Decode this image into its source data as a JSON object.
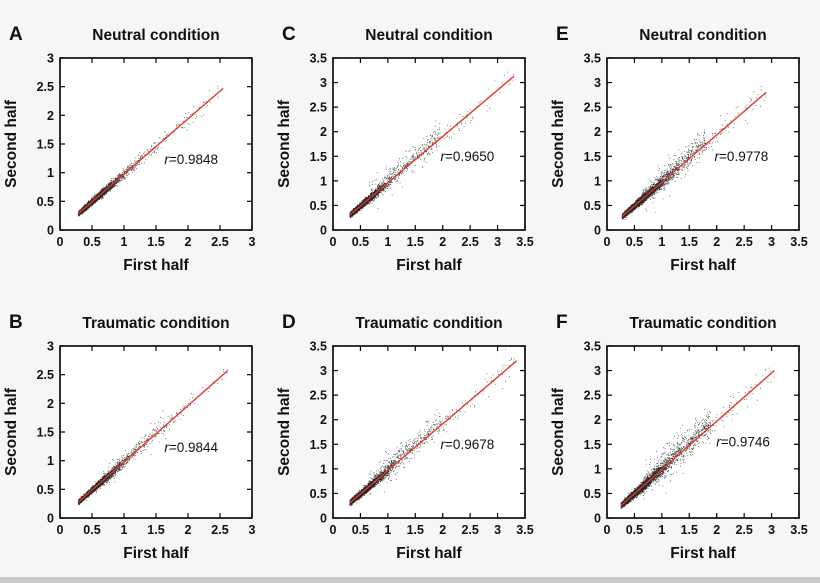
{
  "figure": {
    "background_color": "#f6f6f6",
    "plot_background_color": "#ffffff",
    "axis_color": "#000000",
    "text_color": "#111111",
    "point_color": "#000000",
    "regression_line_color": "#e0392e",
    "bottom_strip_color": "#c8c8c8"
  },
  "chart_data": [
    {
      "id": "A",
      "panel_label": "A",
      "type": "scatter",
      "title": "Neutral condition",
      "xlabel": "First half",
      "ylabel": "Second half",
      "xlim": [
        0,
        3
      ],
      "ylim": [
        0,
        3
      ],
      "xticks": [
        0,
        0.5,
        1,
        1.5,
        2,
        2.5,
        3
      ],
      "yticks": [
        0,
        0.5,
        1,
        1.5,
        2,
        2.5,
        3
      ],
      "grid": false,
      "r_value": 0.9848,
      "r_text": "r=0.9848",
      "r_pos": [
        2.05,
        1.15
      ],
      "regression_line": {
        "x1": 0.28,
        "y1": 0.28,
        "x2": 2.55,
        "y2": 2.47
      },
      "scatter_summary": {
        "description": "Dense black point cloud of paired values hugging the identity line; tight spread widening slightly at higher values",
        "seed": 101,
        "n": 3800,
        "x_min": 0.28,
        "x_max": 2.55,
        "core_sigma": 0.3,
        "noise_base": 0.008,
        "noise_slope": 0.035,
        "fan_n": 0,
        "fan_sigma": 0,
        "fan_up_frac": 0.8
      }
    },
    {
      "id": "C",
      "panel_label": "C",
      "type": "scatter",
      "title": "Neutral condition",
      "xlabel": "First half",
      "ylabel": "Second half",
      "xlim": [
        0,
        3.5
      ],
      "ylim": [
        0,
        3.5
      ],
      "xticks": [
        0,
        0.5,
        1,
        1.5,
        2,
        2.5,
        3,
        3.5
      ],
      "yticks": [
        0,
        0.5,
        1,
        1.5,
        2,
        2.5,
        3,
        3.5
      ],
      "grid": false,
      "r_value": 0.965,
      "r_text": "r=0.9650",
      "r_pos": [
        2.45,
        1.4
      ],
      "regression_line": {
        "x1": 0.3,
        "y1": 0.3,
        "x2": 3.3,
        "y2": 3.13
      },
      "scatter_summary": {
        "description": "Dense cloud up to ~1.5 with an upward fan of outliers between 1 and 2.5 and sparse points out to 3.3",
        "seed": 303,
        "n": 3600,
        "x_min": 0.3,
        "x_max": 3.3,
        "core_sigma": 0.28,
        "noise_base": 0.01,
        "noise_slope": 0.04,
        "fan_n": 260,
        "fan_sigma": 0.14,
        "fan_up_frac": 0.85
      }
    },
    {
      "id": "E",
      "panel_label": "E",
      "type": "scatter",
      "title": "Neutral condition",
      "xlabel": "First half",
      "ylabel": "Second half",
      "xlim": [
        0,
        3.5
      ],
      "ylim": [
        0,
        3.5
      ],
      "xticks": [
        0,
        0.5,
        1,
        1.5,
        2,
        2.5,
        3,
        3.5
      ],
      "yticks": [
        0,
        0.5,
        1,
        1.5,
        2,
        2.5,
        3,
        3.5
      ],
      "grid": false,
      "r_value": 0.9778,
      "r_text": "r=0.9778",
      "r_pos": [
        2.45,
        1.4
      ],
      "regression_line": {
        "x1": 0.27,
        "y1": 0.27,
        "x2": 2.9,
        "y2": 2.8
      },
      "scatter_summary": {
        "description": "Broad dense cloud along identity line extending to ~2.9 with mild upward fan near 1-2",
        "seed": 505,
        "n": 4200,
        "x_min": 0.27,
        "x_max": 2.9,
        "core_sigma": 0.36,
        "noise_base": 0.01,
        "noise_slope": 0.045,
        "fan_n": 380,
        "fan_sigma": 0.13,
        "fan_up_frac": 0.8
      }
    },
    {
      "id": "B",
      "panel_label": "B",
      "type": "scatter",
      "title": "Traumatic condition",
      "xlabel": "First half",
      "ylabel": "Second half",
      "xlim": [
        0,
        3
      ],
      "ylim": [
        0,
        3
      ],
      "xticks": [
        0,
        0.5,
        1,
        1.5,
        2,
        2.5,
        3
      ],
      "yticks": [
        0,
        0.5,
        1,
        1.5,
        2,
        2.5,
        3
      ],
      "grid": false,
      "r_value": 0.9844,
      "r_text": "r=0.9844",
      "r_pos": [
        2.05,
        1.15
      ],
      "regression_line": {
        "x1": 0.28,
        "y1": 0.27,
        "x2": 2.62,
        "y2": 2.57
      },
      "scatter_summary": {
        "description": "Tight dense cloud along identity line to ~1.5, thinning out to ~2.6, slight spread above line near 1.2-1.7",
        "seed": 202,
        "n": 3800,
        "x_min": 0.28,
        "x_max": 2.62,
        "core_sigma": 0.3,
        "noise_base": 0.008,
        "noise_slope": 0.033,
        "fan_n": 120,
        "fan_sigma": 0.09,
        "fan_up_frac": 0.8
      }
    },
    {
      "id": "D",
      "panel_label": "D",
      "type": "scatter",
      "title": "Traumatic condition",
      "xlabel": "First half",
      "ylabel": "Second half",
      "xlim": [
        0,
        3.5
      ],
      "ylim": [
        0,
        3.5
      ],
      "xticks": [
        0,
        0.5,
        1,
        1.5,
        2,
        2.5,
        3,
        3.5
      ],
      "yticks": [
        0,
        0.5,
        1,
        1.5,
        2,
        2.5,
        3,
        3.5
      ],
      "grid": false,
      "r_value": 0.9678,
      "r_text": "r=0.9678",
      "r_pos": [
        2.45,
        1.4
      ],
      "regression_line": {
        "x1": 0.3,
        "y1": 0.3,
        "x2": 3.35,
        "y2": 3.2
      },
      "scatter_summary": {
        "description": "Teardrop-shaped dense cloud to ~1.6 with upward fan of outliers between 1.2 and 2.3 and sparse points to 3.3",
        "seed": 404,
        "n": 3800,
        "x_min": 0.3,
        "x_max": 3.35,
        "core_sigma": 0.3,
        "noise_base": 0.01,
        "noise_slope": 0.04,
        "fan_n": 300,
        "fan_sigma": 0.14,
        "fan_up_frac": 0.85
      }
    },
    {
      "id": "F",
      "panel_label": "F",
      "type": "scatter",
      "title": "Traumatic condition",
      "xlabel": "First half",
      "ylabel": "Second half",
      "xlim": [
        0,
        3.5
      ],
      "ylim": [
        0,
        3.5
      ],
      "xticks": [
        0,
        0.5,
        1,
        1.5,
        2,
        2.5,
        3,
        3.5
      ],
      "yticks": [
        0,
        0.5,
        1,
        1.5,
        2,
        2.5,
        3,
        3.5
      ],
      "grid": false,
      "r_value": 0.9746,
      "r_text": "r=0.9746",
      "r_pos": [
        2.48,
        1.45
      ],
      "regression_line": {
        "x1": 0.25,
        "y1": 0.25,
        "x2": 3.05,
        "y2": 3.0
      },
      "scatter_summary": {
        "description": "Widest cloud; dense to ~1.8 with many outliers above the line between 1 and 2.5, sparse points to ~3.05",
        "seed": 606,
        "n": 4200,
        "x_min": 0.25,
        "x_max": 3.05,
        "core_sigma": 0.38,
        "noise_base": 0.012,
        "noise_slope": 0.05,
        "fan_n": 480,
        "fan_sigma": 0.17,
        "fan_up_frac": 0.8
      }
    }
  ],
  "layout": {
    "grid_rows": 2,
    "grid_cols": 3,
    "panel_order": [
      "A",
      "C",
      "E",
      "B",
      "D",
      "F"
    ]
  }
}
